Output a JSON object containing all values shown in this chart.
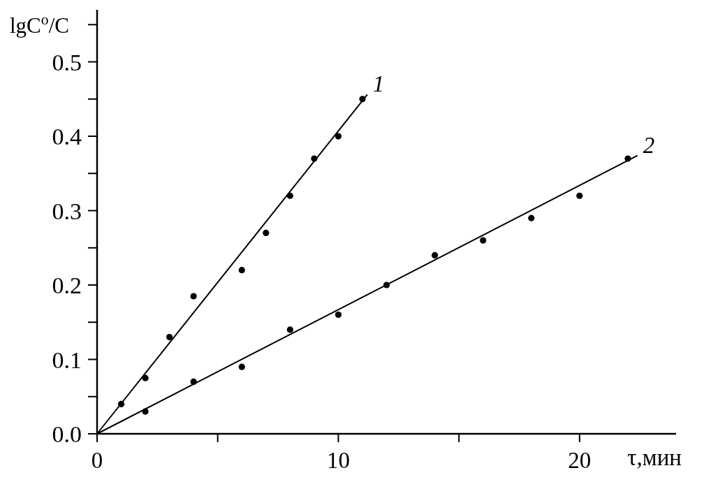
{
  "chart_data": {
    "type": "scatter",
    "xlabel": "τ,мин",
    "ylabel": "lgC$^{o}$/C",
    "xlim": [
      0,
      24
    ],
    "ylim": [
      0,
      0.57
    ],
    "xticks": [
      0,
      {
        "value": 5,
        "label": null
      },
      10,
      {
        "value": 15,
        "label": null
      },
      20
    ],
    "yticks": [
      {
        "value": 0,
        "label": "0.0"
      },
      {
        "value": 0.05,
        "label": null
      },
      0.1,
      {
        "value": 0.15,
        "label": null
      },
      0.2,
      {
        "value": 0.25,
        "label": null
      },
      0.3,
      {
        "value": 0.35,
        "label": null
      },
      0.4,
      {
        "value": 0.45,
        "label": null
      },
      0.5,
      {
        "value": 0.55,
        "label": null
      }
    ],
    "series": [
      {
        "type": "scatter",
        "color": "#000000",
        "marker": "circle",
        "x": [
          1,
          2,
          3,
          4,
          6,
          7,
          8,
          9,
          10,
          11
        ],
        "values": [
          0.04,
          0.075,
          0.13,
          0.185,
          0.22,
          0.27,
          0.32,
          0.37,
          0.4,
          0.45
        ]
      },
      {
        "type": "scatter",
        "color": "#000000",
        "marker": "circle",
        "x": [
          2,
          4,
          6,
          8,
          10,
          12,
          14,
          16,
          18,
          20,
          22
        ],
        "values": [
          0.03,
          0.07,
          0.09,
          0.14,
          0.16,
          0.2,
          0.24,
          0.26,
          0.29,
          0.32,
          0.37
        ]
      },
      {
        "type": "line",
        "name": "1",
        "color": "#000000",
        "line_style": "solid",
        "x": [
          0,
          11.2
        ],
        "values": [
          0,
          0.456
        ]
      },
      {
        "type": "line",
        "name": "2",
        "color": "#000000",
        "line_style": "solid",
        "x": [
          0,
          22.4
        ],
        "values": [
          0,
          0.374
        ]
      }
    ]
  }
}
